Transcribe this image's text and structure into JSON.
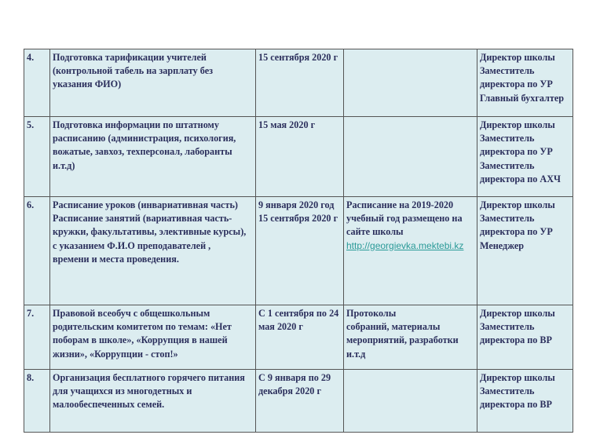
{
  "rows": [
    {
      "num": "4.",
      "task": "Подготовка тарификации учителей\n(контрольной  табель на зарплату без\nуказания ФИО)",
      "date": "15 сентября 2020 г",
      "result": "",
      "link": "",
      "responsible": "Директор школы\nЗаместитель\nдиректора по УР\nГлавный бухгалтер"
    },
    {
      "num": "5.",
      "task": "Подготовка информации по штатному\nрасписанию (администрация,  психология,\nвожатые, завхоз, техперсонал, лаборанты\nи.т.д)",
      "date": "15 мая 2020 г",
      "result": "",
      "link": "",
      "responsible": "Директор школы\nЗаместитель\nдиректора по УР\nЗаместитель\nдиректора по АХЧ"
    },
    {
      "num": "6.",
      "task": "Расписание уроков (инвариативная часть)\nРасписание занятий (вариативная часть-\nкружки, факультативы, элективные курсы),\nс указанием Ф.И.О преподавателей ,\nвремени и места проведения.",
      "date": "9 января 2020 год\n15 сентября 2020 г",
      "result": "Расписание на 2019-2020\nучебный год размещено на\nсайте школы",
      "link": "http://georgievka.mektebi.kz",
      "responsible": "Директор школы\nЗаместитель\nдиректора по УР\nМенеджер"
    },
    {
      "num": "7.",
      "task": "Правовой всеобуч с общешкольным\nродительским комитетом по темам: «Нет\nпоборам в школе», «Коррупция в нашей\nжизни», «Коррупции  - стоп!»",
      "date": "С 1 сентября по 24\nмая 2020 г",
      "result": "Протоколы\nсобраний, материалы\nмероприятий, разработки\nи.т.д",
      "link": "",
      "responsible": "Директор школы\nЗаместитель\nдиректора по ВР"
    },
    {
      "num": "8.",
      "task": "Организация  бесплатного горячего питания\nдля учащихся из многодетных и\nмалообеспеченных  семей.",
      "date": "С 9 января  по 29\nдекабря 2020 г",
      "result": "",
      "link": "",
      "responsible": "Директор школы\nЗаместитель\nдиректора по ВР"
    }
  ]
}
